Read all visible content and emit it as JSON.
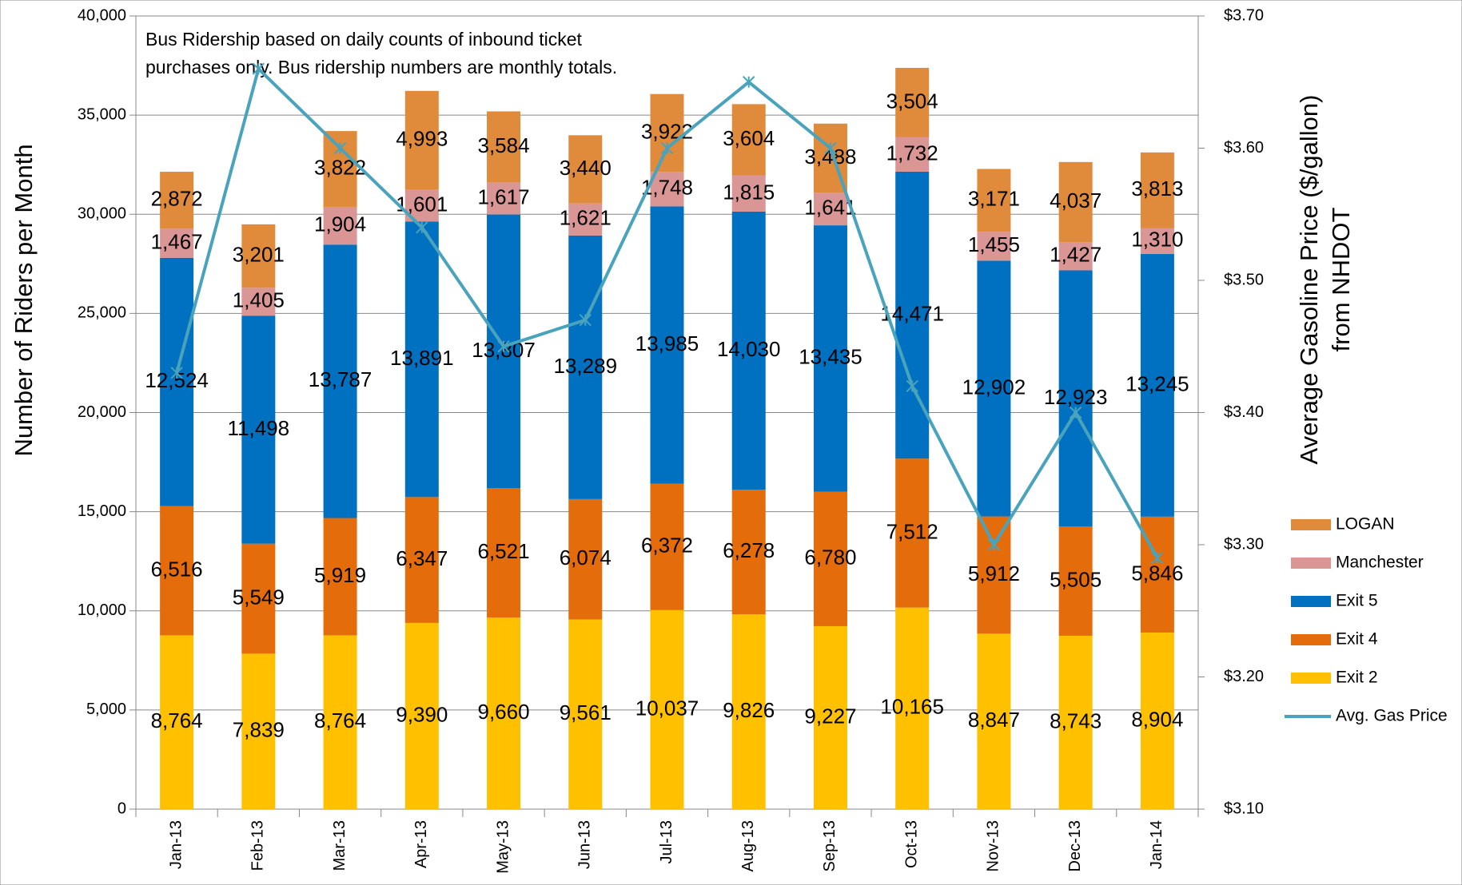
{
  "chart_data": {
    "type": "stacked-bar-line",
    "annotation": [
      "Bus Ridership based on daily counts of inbound ticket",
      "purchases only.  Bus ridership numbers are monthly totals."
    ],
    "ylabel": "Number of Riders per Month",
    "y2label": [
      "Average Gasoline Price ($/gallon)",
      "from NHDOT"
    ],
    "categories": [
      "Jan-13",
      "Feb-13",
      "Mar-13",
      "Apr-13",
      "May-13",
      "Jun-13",
      "Jul-13",
      "Aug-13",
      "Sep-13",
      "Oct-13",
      "Nov-13",
      "Dec-13",
      "Jan-14"
    ],
    "ylim": [
      0,
      40000
    ],
    "yticks": [
      0,
      {
        "value": 5000,
        "label": "5,000"
      },
      {
        "value": 10000,
        "label": "10,000"
      },
      {
        "value": 15000,
        "label": "15,000"
      },
      {
        "value": 20000,
        "label": "20,000"
      },
      {
        "value": 25000,
        "label": "25,000"
      },
      {
        "value": 30000,
        "label": "30,000"
      },
      {
        "value": 35000,
        "label": "35,000"
      },
      {
        "value": 40000,
        "label": "40,000"
      }
    ],
    "y2lim": [
      3.1,
      3.7
    ],
    "y2ticks": [
      {
        "value": 3.1,
        "label": "$3.10"
      },
      {
        "value": 3.2,
        "label": "$3.20"
      },
      {
        "value": 3.3,
        "label": "$3.30"
      },
      {
        "value": 3.4,
        "label": "$3.40"
      },
      {
        "value": 3.5,
        "label": "$3.50"
      },
      {
        "value": 3.6,
        "label": "$3.60"
      },
      {
        "value": 3.7,
        "label": "$3.70"
      }
    ],
    "grid": true,
    "legend": "right",
    "series": [
      {
        "name": "Exit 2",
        "color": "#ffc000",
        "values": [
          8764,
          7839,
          8764,
          9390,
          9660,
          9561,
          10037,
          9826,
          9227,
          10165,
          8847,
          8743,
          8904
        ],
        "value_labels": [
          "8,764",
          "7,839",
          "8,764",
          "9,390",
          "9,660",
          "9,561",
          "10,037",
          "9,826",
          "9,227",
          "10,165",
          "8,847",
          "8,743",
          "8,904"
        ]
      },
      {
        "name": "Exit 4",
        "color": "#e46c0a",
        "values": [
          6516,
          5549,
          5919,
          6347,
          6521,
          6074,
          6372,
          6278,
          6780,
          7512,
          5912,
          5505,
          5846
        ],
        "value_labels": [
          "6,516",
          "5,549",
          "5,919",
          "6,347",
          "6,521",
          "6,074",
          "6,372",
          "6,278",
          "6,780",
          "7,512",
          "5,912",
          "5,505",
          "5,846"
        ]
      },
      {
        "name": "Exit 5",
        "color": "#0070c0",
        "values": [
          12524,
          11498,
          13787,
          13891,
          13807,
          13289,
          13985,
          14030,
          13435,
          14471,
          12902,
          12923,
          13245
        ],
        "value_labels": [
          "12,524",
          "11,498",
          "13,787",
          "13,891",
          "13,807",
          "13,289",
          "13,985",
          "14,030",
          "13,435",
          "14,471",
          "12,902",
          "12,923",
          "13,245"
        ]
      },
      {
        "name": "Manchester",
        "color": "#d99694",
        "values": [
          1467,
          1405,
          1904,
          1601,
          1617,
          1621,
          1748,
          1815,
          1641,
          1732,
          1455,
          1427,
          1310
        ],
        "value_labels": [
          "1,467",
          "1,405",
          "1,904",
          "1,601",
          "1,617",
          "1,621",
          "1,748",
          "1,815",
          "1,641",
          "1,732",
          "1,455",
          "1,427",
          "1,310"
        ]
      },
      {
        "name": "LOGAN",
        "color": "#e08a3c",
        "values": [
          2872,
          3201,
          3822,
          4993,
          3584,
          3440,
          3922,
          3604,
          3488,
          3504,
          3171,
          4037,
          3813
        ],
        "value_labels": [
          "2,872",
          "3,201",
          "3,822",
          "4,993",
          "3,584",
          "3,440",
          "3,922",
          "3,604",
          "3,488",
          "3,504",
          "3,171",
          "4,037",
          "3,813"
        ]
      },
      {
        "name": "Avg. Gas Price",
        "type": "line",
        "axis": "y2",
        "color": "#4aa3bc",
        "values": [
          3.43,
          3.66,
          3.6,
          3.54,
          3.45,
          3.47,
          3.6,
          3.65,
          3.6,
          3.42,
          3.3,
          3.4,
          3.29
        ]
      }
    ]
  }
}
